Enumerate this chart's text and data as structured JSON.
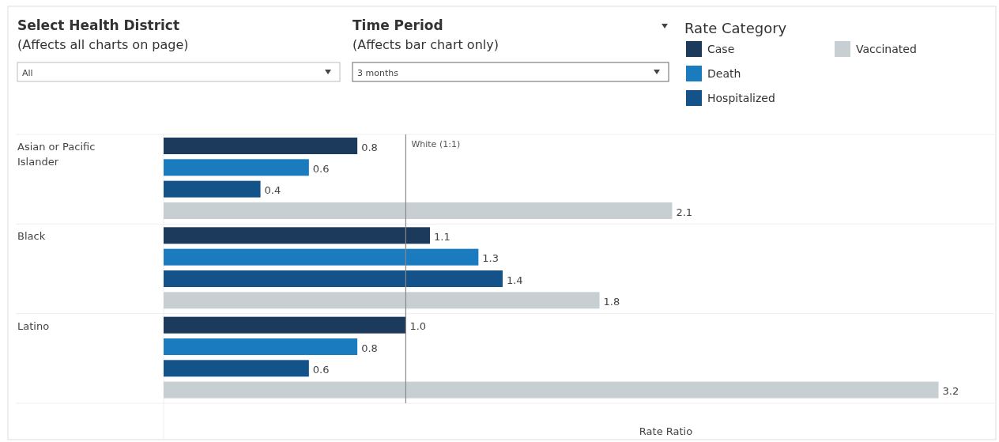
{
  "chart_data": {
    "type": "bar",
    "orientation": "horizontal",
    "xlabel": "Rate Ratio",
    "legend_title": "Rate Category",
    "legend": "top right",
    "categories": [
      "Asian or Pacific Islander",
      "Black",
      "Latino"
    ],
    "series": [
      {
        "name": "Case",
        "color": "#1b3a5c",
        "values": [
          0.8,
          1.1,
          1.0
        ],
        "value_labels": [
          "0.8",
          "1.1",
          "1.0"
        ]
      },
      {
        "name": "Death",
        "color": "#1a7bbf",
        "values": [
          0.6,
          1.3,
          0.8
        ],
        "value_labels": [
          "0.6",
          "1.3",
          "0.8"
        ]
      },
      {
        "name": "Hospitalized",
        "color": "#14538a",
        "values": [
          0.4,
          1.4,
          0.6
        ],
        "value_labels": [
          "0.4",
          "1.4",
          "0.6"
        ]
      },
      {
        "name": "Vaccinated",
        "color": "#c8cfd3",
        "values": [
          2.1,
          1.8,
          3.2
        ],
        "value_labels": [
          "2.1",
          "1.8",
          "3.2"
        ]
      }
    ],
    "xlim": [
      0,
      3.43
    ],
    "tick_labels": "y",
    "ref_lines": [
      {
        "axis": "x",
        "value": 1,
        "label": "White (1:1)",
        "color": "#888888"
      }
    ],
    "annotations": [
      "Select Health District",
      "(Affects all charts on page)",
      "All",
      "Time Period",
      "(Affects bar chart only)",
      "3 months"
    ]
  }
}
